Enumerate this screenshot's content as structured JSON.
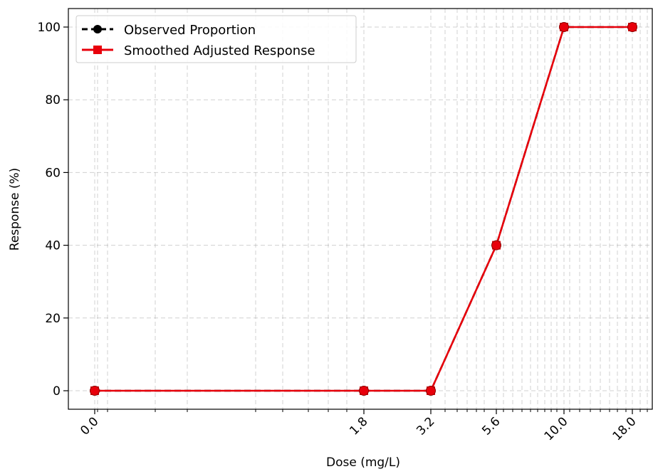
{
  "chart_data": {
    "type": "line",
    "title": "",
    "xlabel": "Dose (mg/L)",
    "ylabel": "Response (%)",
    "x_scale": "log",
    "x_tick_labels": [
      "0.0",
      "1.8",
      "3.2",
      "5.6",
      "10.0",
      "18.0"
    ],
    "y_ticks": [
      0,
      20,
      40,
      60,
      80,
      100
    ],
    "ylim": [
      -5,
      105
    ],
    "grid": true,
    "legend_position": "top-left",
    "series": [
      {
        "name": "Observed Proportion",
        "style": "dashed",
        "marker": "circle",
        "color": "#000000",
        "values": [
          0,
          0,
          0,
          40,
          100,
          100
        ]
      },
      {
        "name": "Smoothed Adjusted Response",
        "style": "solid",
        "marker": "square",
        "color": "#e8000b",
        "values": [
          0,
          0,
          0,
          40,
          100,
          100
        ]
      }
    ]
  }
}
